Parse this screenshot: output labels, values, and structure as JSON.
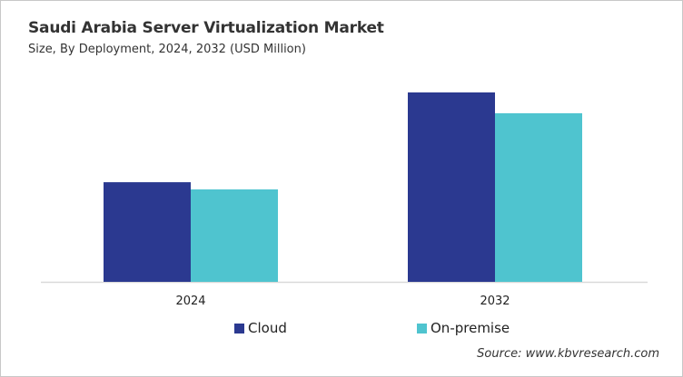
{
  "chart_data": {
    "type": "bar",
    "title": "Saudi Arabia Server Virtualization Market",
    "subtitle": "Size, By Deployment, 2024, 2032 (USD Million)",
    "categories": [
      "2024",
      "2032"
    ],
    "series": [
      {
        "name": "Cloud",
        "values": [
          52.6,
          100
        ],
        "color": "#2b3990"
      },
      {
        "name": "On-premise",
        "values": [
          48.8,
          89.0
        ],
        "color": "#4fc4cf"
      }
    ],
    "ylim": [
      0,
      100
    ],
    "y_axis_visible": false,
    "grid": false,
    "legend_position": "bottom",
    "source": "Source: www.kbvresearch.com"
  }
}
